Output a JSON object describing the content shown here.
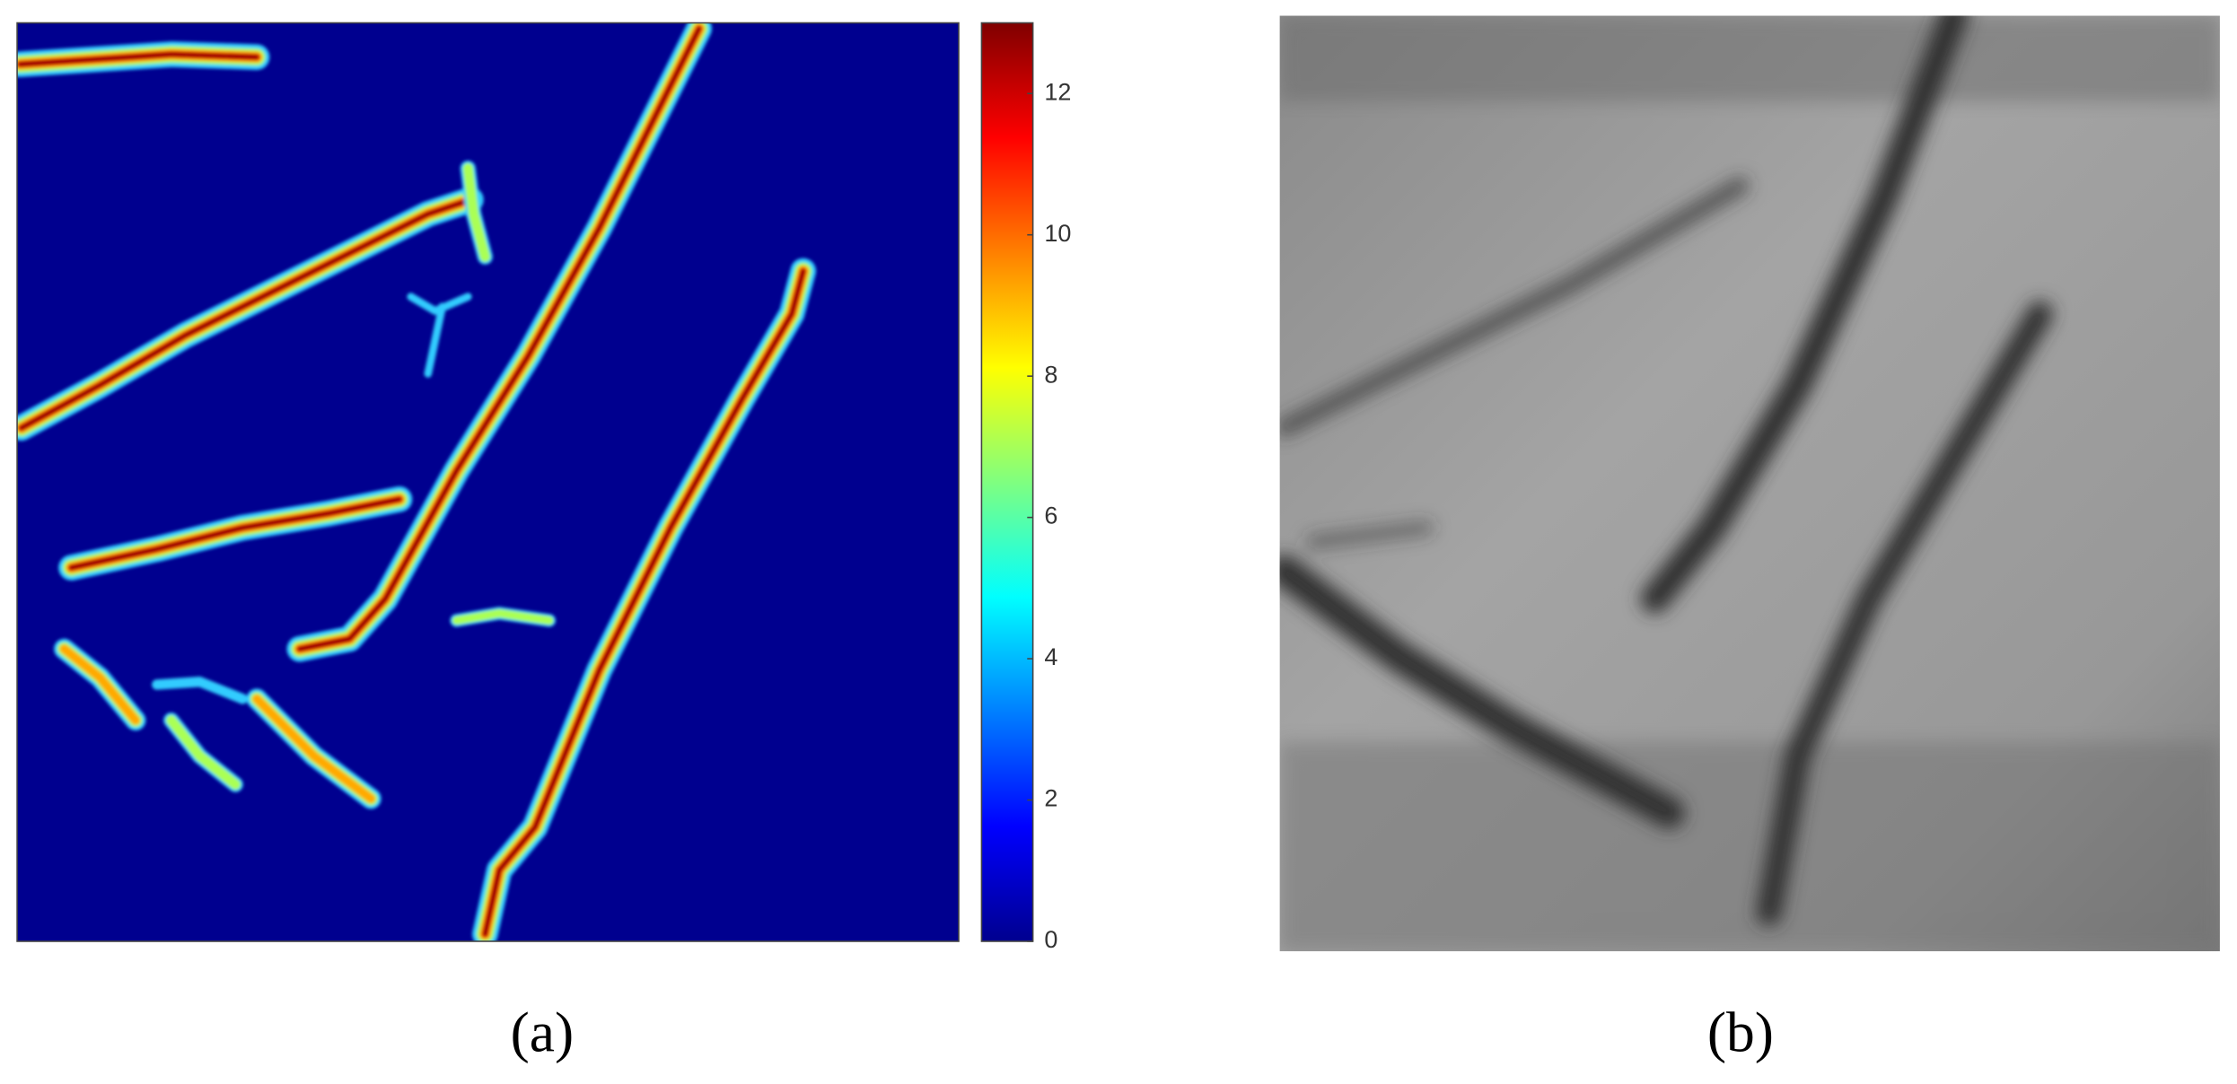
{
  "figure": {
    "panel_a": {
      "colorbar": {
        "lim": [
          0,
          13
        ],
        "ticks": [
          0,
          2,
          4,
          6,
          8,
          10,
          12
        ]
      },
      "caption": "(a)"
    },
    "panel_b": {
      "caption": "(b)"
    }
  }
}
